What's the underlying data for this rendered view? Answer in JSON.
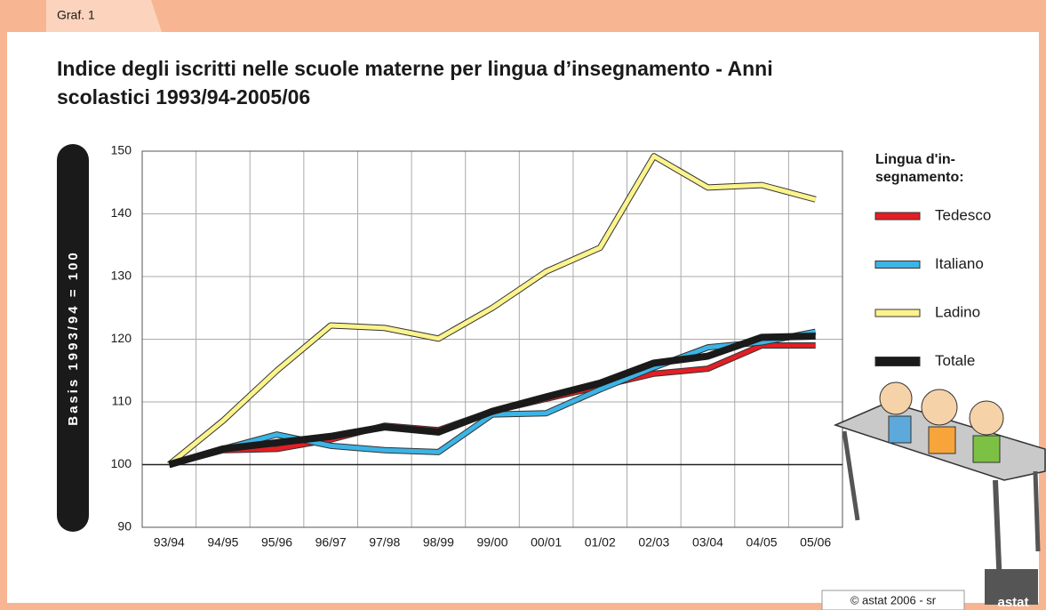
{
  "tab": "Graf. 1",
  "footer": "© astat 2006 - sr",
  "logo": "astat",
  "chart_data": {
    "type": "line",
    "title": [
      "Indice degli iscritti nelle scuole materne per lingua d’insegnamento - Anni",
      "scolastici 1993/94-2005/06"
    ],
    "y_label": "Basis 1993/94 = 100",
    "legend_title": [
      "Lingua d'in-",
      "segnamento:"
    ],
    "categories": [
      "93/94",
      "94/95",
      "95/96",
      "96/97",
      "97/98",
      "98/99",
      "99/00",
      "00/01",
      "01/02",
      "02/03",
      "03/04",
      "04/05",
      "05/06"
    ],
    "series": [
      {
        "name": "Tedesco",
        "color": "#e31e24",
        "values": [
          100,
          102.3,
          102.5,
          104,
          106.2,
          105.5,
          108.5,
          110.5,
          112.5,
          114.5,
          115.3,
          119,
          119
        ]
      },
      {
        "name": "Italiano",
        "color": "#3bb4e6",
        "values": [
          100,
          102.5,
          104.8,
          103,
          102.3,
          102,
          108,
          108.2,
          112,
          115.5,
          118.7,
          119.5,
          121.2
        ]
      },
      {
        "name": "Ladino",
        "color": "#fbf38c",
        "values": [
          100,
          107,
          115,
          122.2,
          121.8,
          120.1,
          125,
          130.8,
          134.6,
          149.2,
          144.2,
          144.6,
          142.3
        ]
      },
      {
        "name": "Totale",
        "color": "#1a1a1a",
        "values": [
          100,
          102.5,
          103.5,
          104.5,
          106,
          105.2,
          108.5,
          110.8,
          113,
          116.2,
          117.3,
          120.3,
          120.5
        ]
      }
    ],
    "ylim": [
      90,
      150
    ],
    "yticks": [
      90,
      100,
      110,
      120,
      130,
      140,
      150
    ],
    "reference_line": 100,
    "grid": true
  }
}
